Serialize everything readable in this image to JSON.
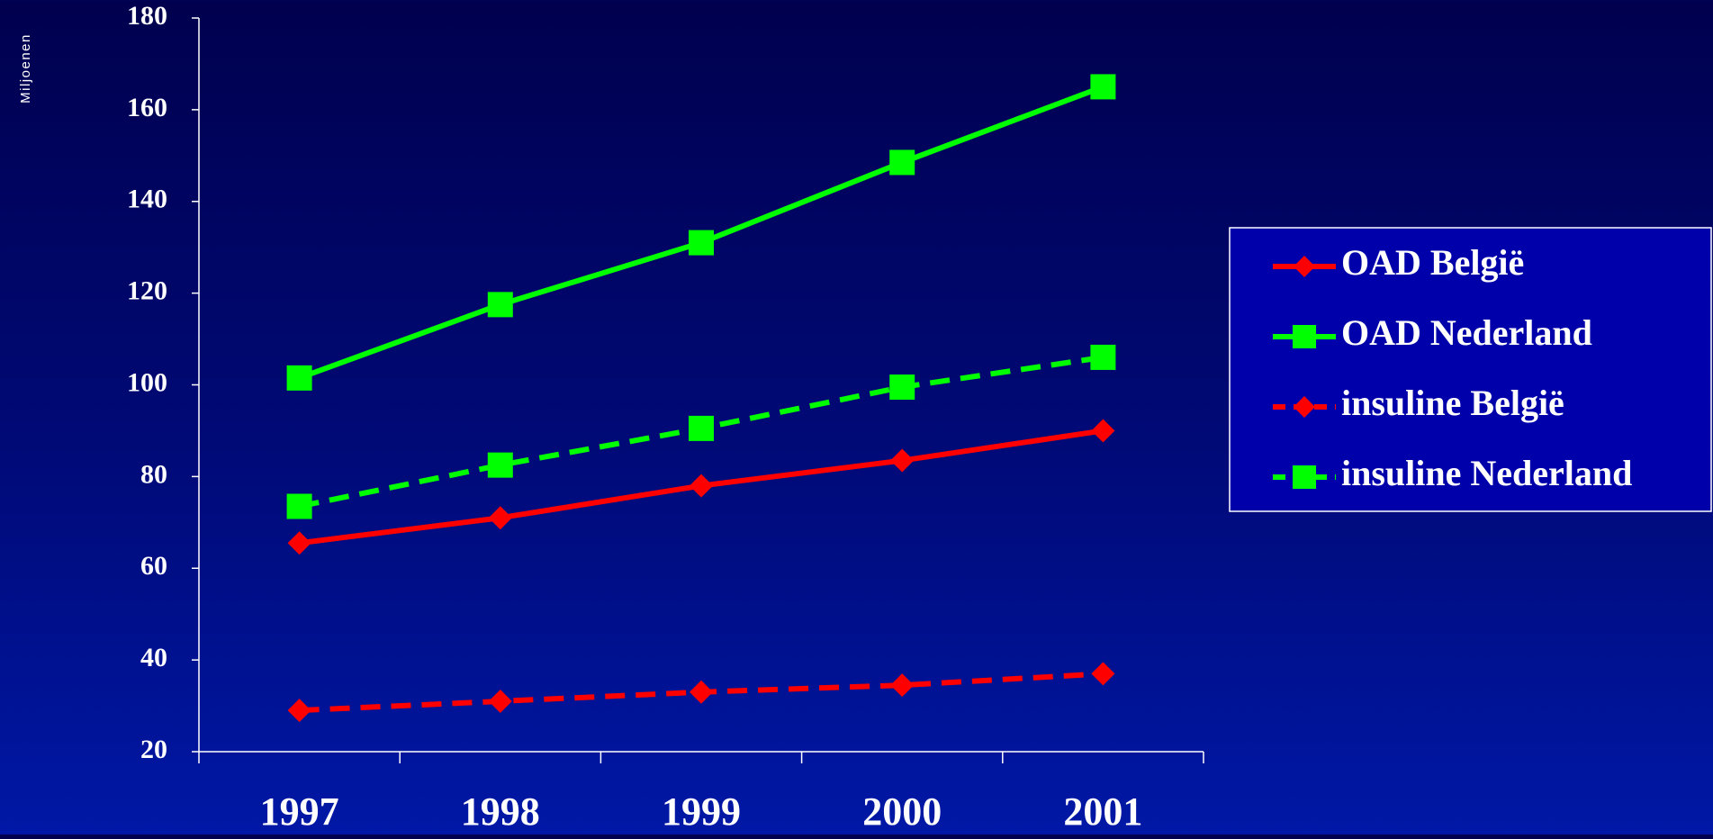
{
  "chart_data": {
    "type": "line",
    "ylabel": "Miljoenen",
    "categories": [
      "1997",
      "1998",
      "1999",
      "2000",
      "2001"
    ],
    "ylim": [
      20,
      180
    ],
    "yticks": [
      20,
      40,
      60,
      80,
      100,
      120,
      140,
      160,
      180
    ],
    "grid": false,
    "legend_position": "right",
    "series": [
      {
        "name": "OAD België",
        "color": "#ff0000",
        "marker": "diamond",
        "dash": "solid",
        "values": [
          65.5,
          71,
          78,
          83.5,
          90
        ]
      },
      {
        "name": "OAD Nederland",
        "color": "#00ff00",
        "marker": "square",
        "dash": "solid",
        "values": [
          101.5,
          117.5,
          131,
          148.5,
          165
        ]
      },
      {
        "name": "insuline België",
        "color": "#ff0000",
        "marker": "diamond",
        "dash": "dashed",
        "values": [
          29,
          31,
          33,
          34.5,
          37
        ]
      },
      {
        "name": "insuline Nederland",
        "color": "#00ff00",
        "marker": "square",
        "dash": "dashed",
        "values": [
          73.5,
          82.5,
          90.5,
          99.5,
          106
        ]
      }
    ]
  },
  "colors": {
    "axis": "#ffffff",
    "text": "#ffffff",
    "legend_bg": "#0000aa",
    "legend_border": "#ffffff"
  }
}
